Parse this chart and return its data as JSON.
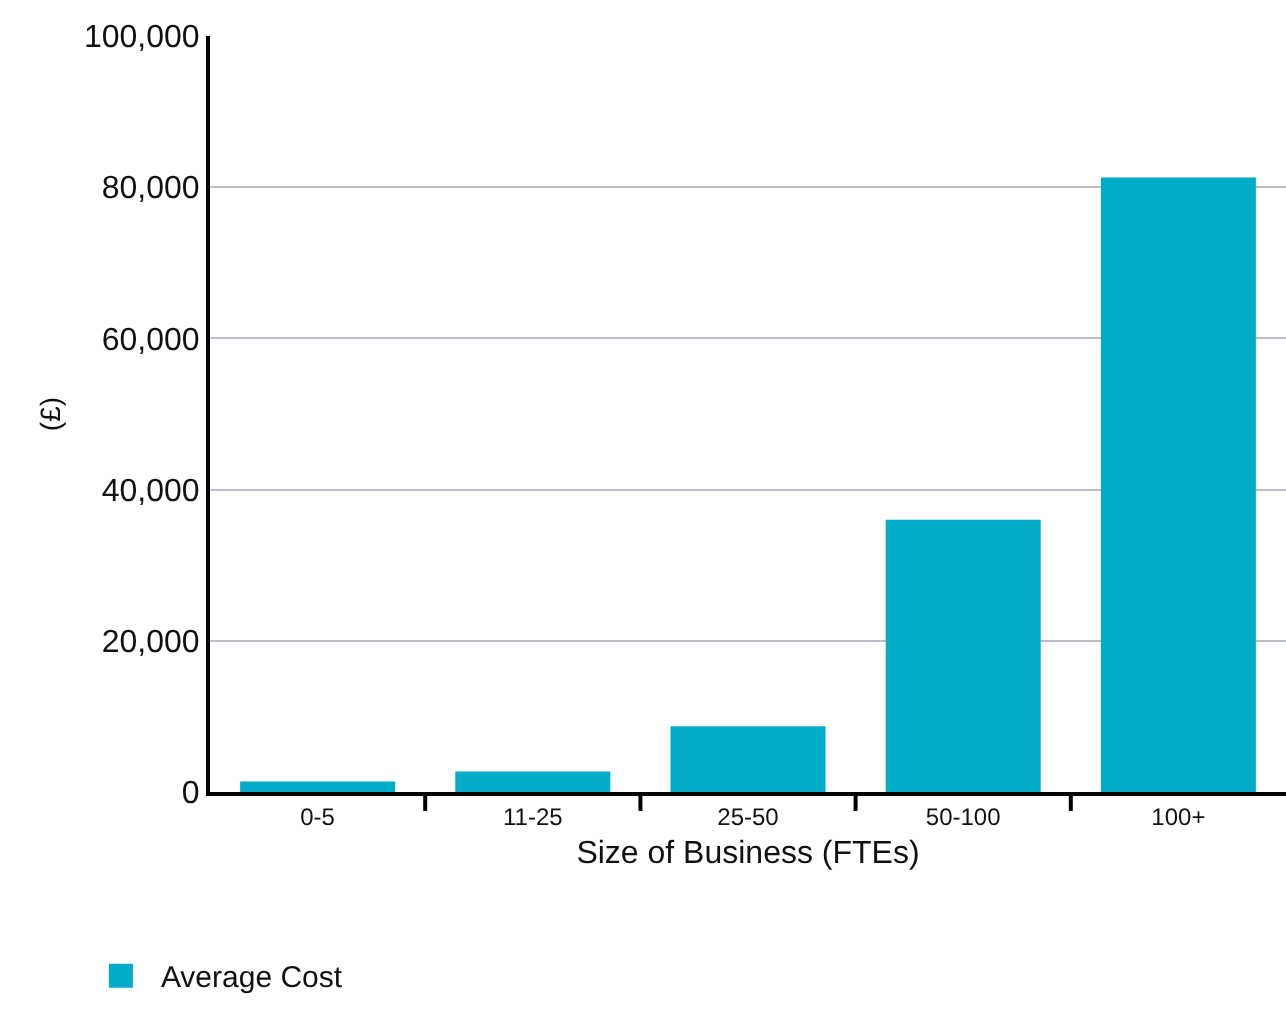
{
  "chart_data": {
    "type": "bar",
    "xlabel": "Size of Business (FTEs)",
    "ylabel": "(£)",
    "categories": [
      "0-5",
      "11-25",
      "25-50",
      "50-100",
      "100+"
    ],
    "series": [
      {
        "name": "Average Cost",
        "color": "#00acc8",
        "values": [
          1400,
          2700,
          8700,
          36000,
          81300
        ]
      }
    ],
    "ylim": [
      0,
      100000
    ],
    "yticks": [
      {
        "value": 0,
        "label": "0"
      },
      {
        "value": 20000,
        "label": "20,000"
      },
      {
        "value": 40000,
        "label": "40,000"
      },
      {
        "value": 60000,
        "label": "60,000"
      },
      {
        "value": 80000,
        "label": "80,000"
      },
      {
        "value": 100000,
        "label": "100,000"
      }
    ],
    "grid": "y",
    "legend": "bottom left"
  }
}
